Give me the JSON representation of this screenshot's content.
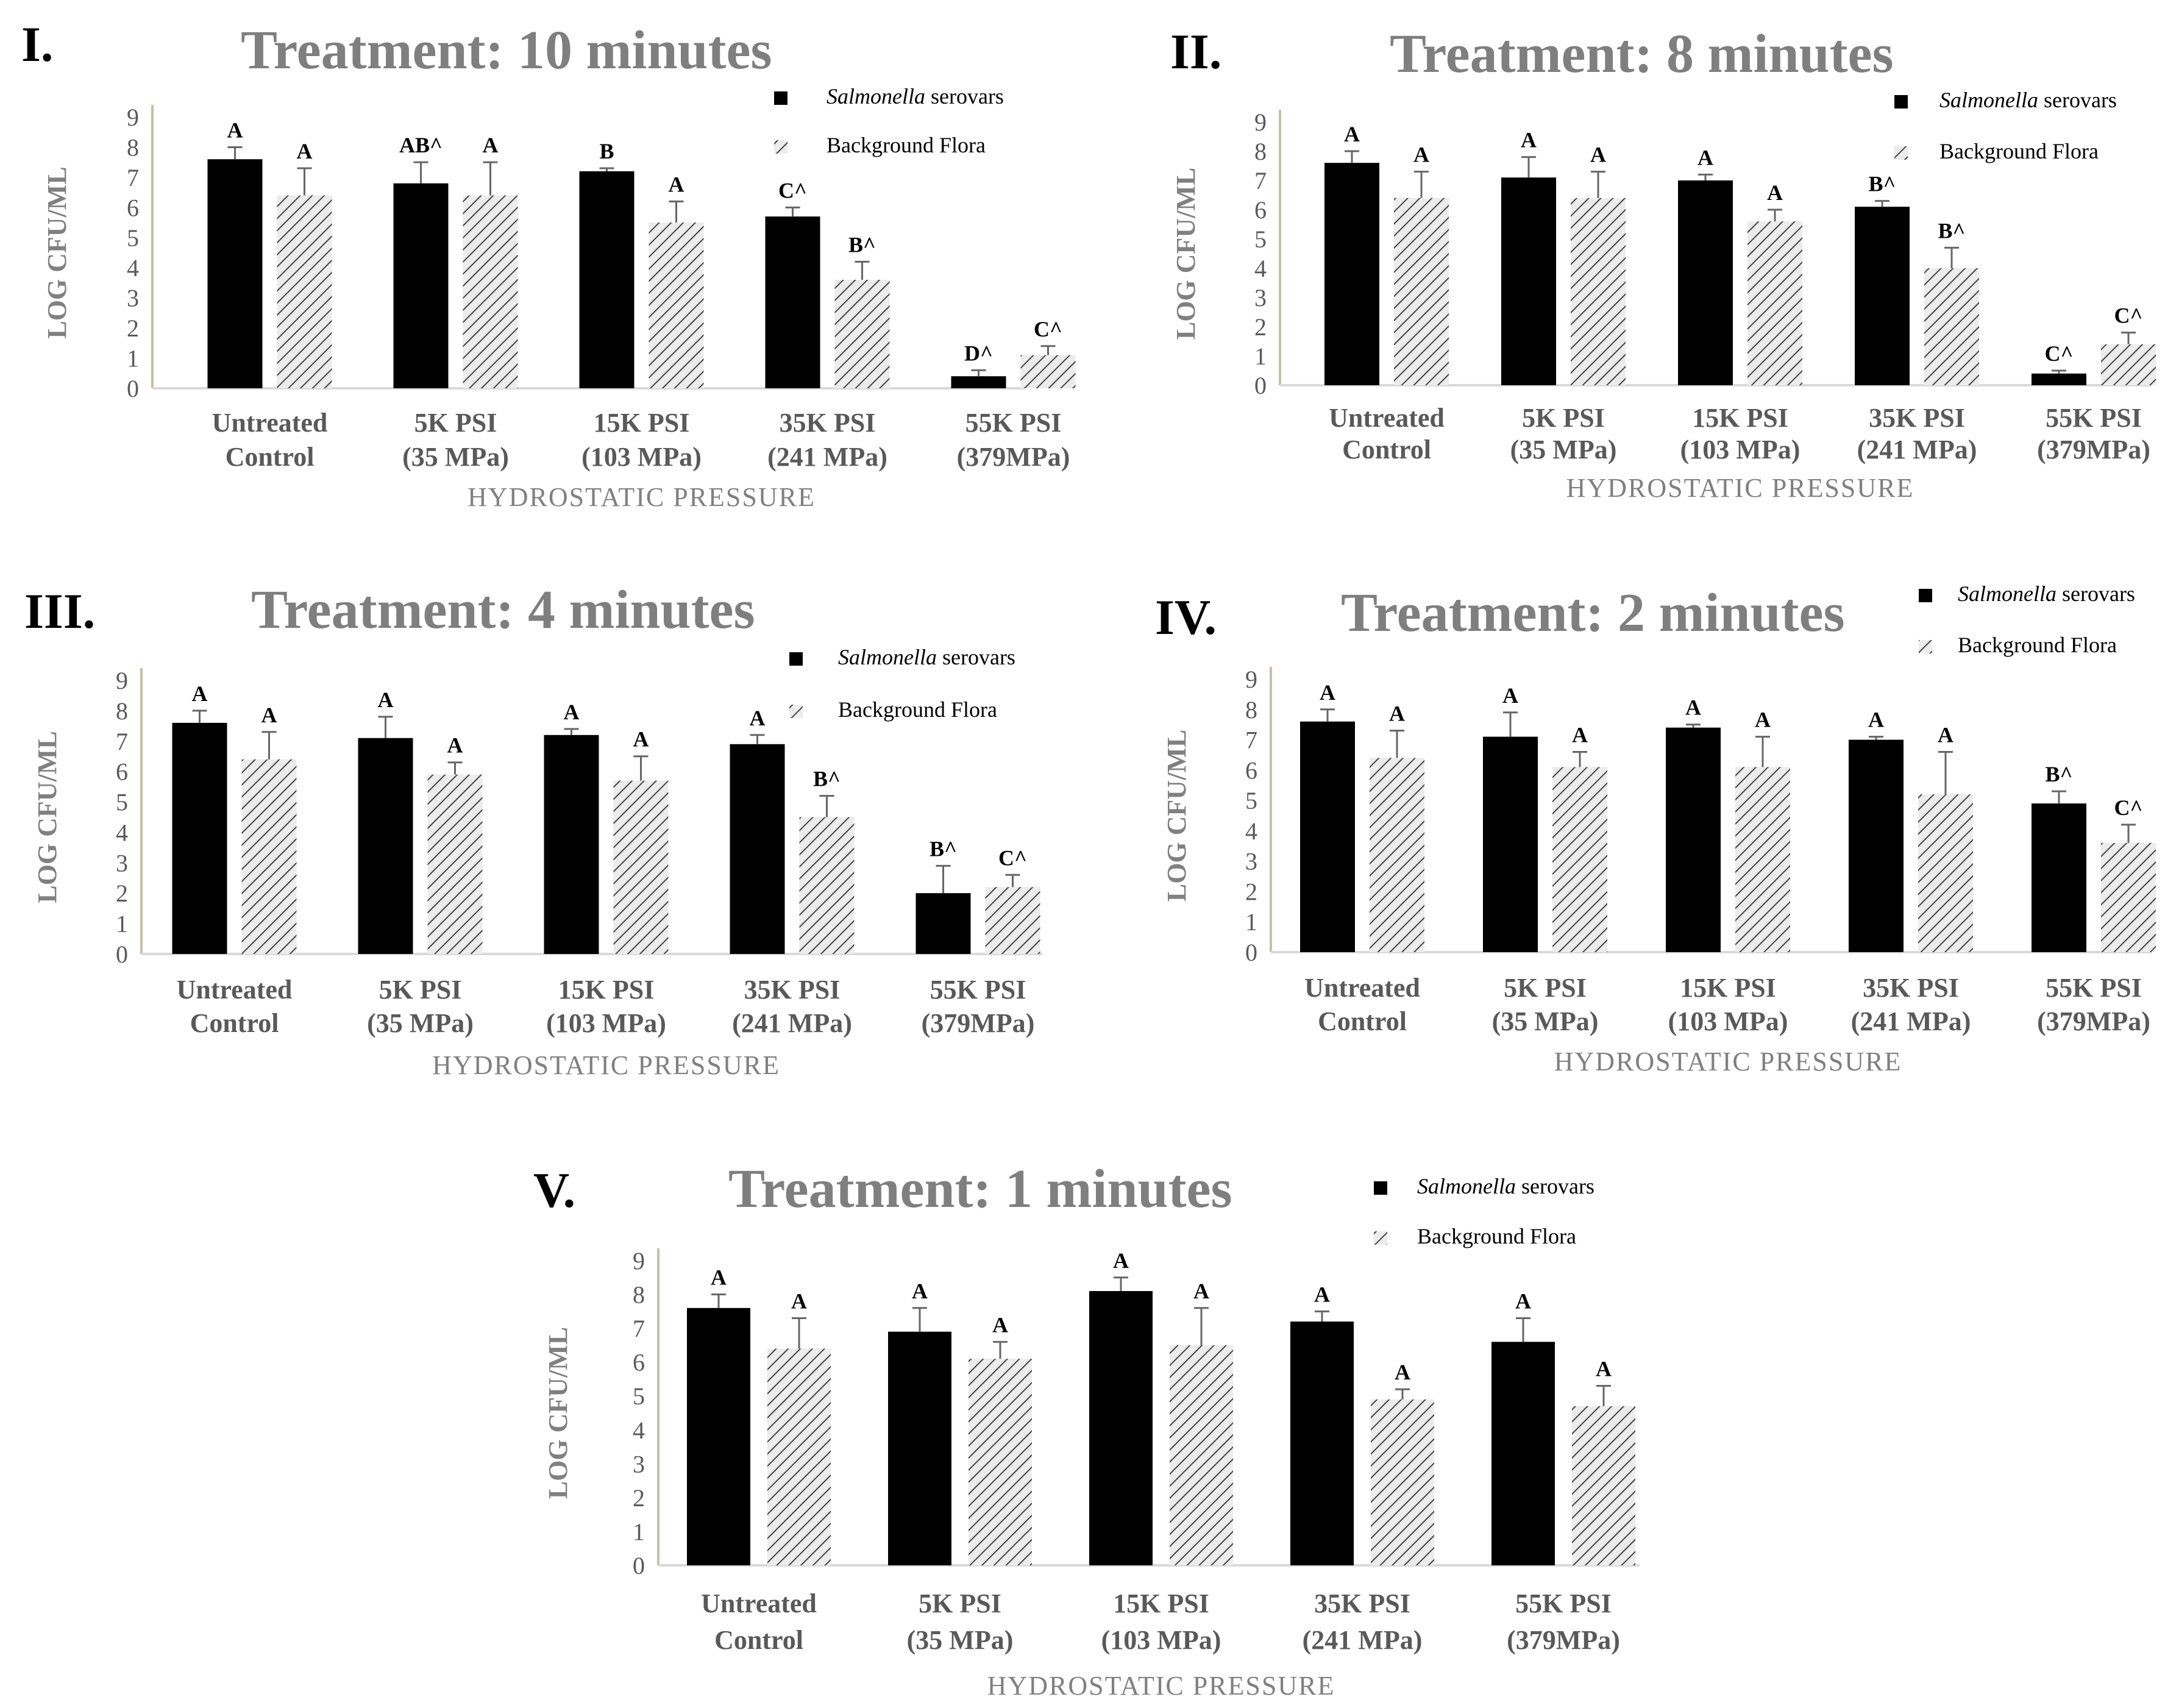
{
  "legend": {
    "salmonella_label": "Salmonella",
    "salmonella_suffix": "serovars",
    "flora_label": "Background Flora"
  },
  "colors": {
    "salmonella": "#000000",
    "flora_fill": "#ececec",
    "flora_hatch": "#444444",
    "title": "#7f7f7f",
    "axis_label": "#808080",
    "tick_label": "#595959",
    "axis_line": "#c8bfa3",
    "baseline": "#d9d9d9",
    "error_bar": "#666666"
  },
  "chart_data": [
    {
      "type": "bar",
      "panel_label": "I.",
      "title": "Treatment: 10 minutes",
      "xlabel": "HYDROSTATIC PRESSURE",
      "ylabel": "LOG CFU/ML",
      "ylim": [
        0,
        9
      ],
      "yticks": [
        "0",
        "1",
        "2",
        "3",
        "4",
        "5",
        "6",
        "7",
        "8",
        "9"
      ],
      "legend_placement": "top-right",
      "grid": false,
      "categories": [
        [
          "Untreated",
          "Control"
        ],
        [
          "5K PSI",
          "(35 MPa)"
        ],
        [
          "15K PSI",
          "(103 MPa)"
        ],
        [
          "35K PSI",
          "(241 MPa)"
        ],
        [
          "55K PSI",
          "(379MPa)"
        ]
      ],
      "series": [
        {
          "name": "Salmonella serovars",
          "values": [
            7.6,
            6.8,
            7.2,
            5.7,
            0.4
          ],
          "errors": [
            0.4,
            0.7,
            0.1,
            0.3,
            0.2
          ],
          "letters": [
            "A",
            "AB^",
            "B",
            "C^",
            "D^"
          ]
        },
        {
          "name": "Background Flora",
          "values": [
            6.4,
            6.4,
            5.5,
            3.6,
            1.1
          ],
          "errors": [
            0.9,
            1.1,
            0.7,
            0.6,
            0.3
          ],
          "letters": [
            "A",
            "A",
            "A",
            "B^",
            "C^"
          ]
        }
      ]
    },
    {
      "type": "bar",
      "panel_label": "II.",
      "title": "Treatment: 8 minutes",
      "xlabel": "HYDROSTATIC PRESSURE",
      "ylabel": "LOG CFU/ML",
      "ylim": [
        0,
        9
      ],
      "yticks": [
        "0",
        "1",
        "2",
        "3",
        "4",
        "5",
        "6",
        "7",
        "8",
        "9"
      ],
      "legend_placement": "top-right",
      "grid": false,
      "categories": [
        [
          "Untreated",
          "Control"
        ],
        [
          "5K PSI",
          "(35 MPa)"
        ],
        [
          "15K PSI",
          "(103 MPa)"
        ],
        [
          "35K PSI",
          "(241 MPa)"
        ],
        [
          "55K PSI",
          "(379MPa)"
        ]
      ],
      "series": [
        {
          "name": "Salmonella serovars",
          "values": [
            7.6,
            7.1,
            7.0,
            6.1,
            0.4
          ],
          "errors": [
            0.4,
            0.7,
            0.2,
            0.2,
            0.1
          ],
          "letters": [
            "A",
            "A",
            "A",
            "B^",
            "C^"
          ]
        },
        {
          "name": "Background Flora",
          "values": [
            6.4,
            6.4,
            5.6,
            4.0,
            1.4
          ],
          "errors": [
            0.9,
            0.9,
            0.4,
            0.7,
            0.4
          ],
          "letters": [
            "A",
            "A",
            "A",
            "B^",
            "C^"
          ]
        }
      ]
    },
    {
      "type": "bar",
      "panel_label": "III.",
      "title": "Treatment: 4 minutes",
      "xlabel": "HYDROSTATIC PRESSURE",
      "ylabel": "LOG CFU/ML",
      "ylim": [
        0,
        9
      ],
      "yticks": [
        "0",
        "1",
        "2",
        "3",
        "4",
        "5",
        "6",
        "7",
        "8",
        "9"
      ],
      "legend_placement": "top-right",
      "grid": false,
      "categories": [
        [
          "Untreated",
          "Control"
        ],
        [
          "5K PSI",
          "(35 MPa)"
        ],
        [
          "15K PSI",
          "(103 MPa)"
        ],
        [
          "35K PSI",
          "(241 MPa)"
        ],
        [
          "55K PSI",
          "(379MPa)"
        ]
      ],
      "series": [
        {
          "name": "Salmonella serovars",
          "values": [
            7.6,
            7.1,
            7.2,
            6.9,
            2.0
          ],
          "errors": [
            0.4,
            0.7,
            0.2,
            0.3,
            0.9
          ],
          "letters": [
            "A",
            "A",
            "A",
            "A",
            "B^"
          ]
        },
        {
          "name": "Background Flora",
          "values": [
            6.4,
            5.9,
            5.7,
            4.5,
            2.2
          ],
          "errors": [
            0.9,
            0.4,
            0.8,
            0.7,
            0.4
          ],
          "letters": [
            "A",
            "A",
            "A",
            "B^",
            "C^"
          ]
        }
      ]
    },
    {
      "type": "bar",
      "panel_label": "IV.",
      "title": "Treatment: 2 minutes",
      "xlabel": "HYDROSTATIC PRESSURE",
      "ylabel": "LOG CFU/ML",
      "ylim": [
        0,
        9
      ],
      "yticks": [
        "0",
        "1",
        "2",
        "3",
        "4",
        "5",
        "6",
        "7",
        "8",
        "9"
      ],
      "legend_placement": "top-right",
      "grid": false,
      "categories": [
        [
          "Untreated",
          "Control"
        ],
        [
          "5K PSI",
          "(35 MPa)"
        ],
        [
          "15K PSI",
          "(103 MPa)"
        ],
        [
          "35K PSI",
          "(241 MPa)"
        ],
        [
          "55K PSI",
          "(379MPa)"
        ]
      ],
      "series": [
        {
          "name": "Salmonella serovars",
          "values": [
            7.6,
            7.1,
            7.4,
            7.0,
            4.9
          ],
          "errors": [
            0.4,
            0.8,
            0.1,
            0.1,
            0.4
          ],
          "letters": [
            "A",
            "A",
            "A",
            "A",
            "B^"
          ]
        },
        {
          "name": "Background Flora",
          "values": [
            6.4,
            6.1,
            6.1,
            5.2,
            3.6
          ],
          "errors": [
            0.9,
            0.5,
            1.0,
            1.4,
            0.6
          ],
          "letters": [
            "A",
            "A",
            "A",
            "A",
            "C^"
          ]
        }
      ]
    },
    {
      "type": "bar",
      "panel_label": "V.",
      "title": "Treatment: 1 minutes",
      "xlabel": "HYDROSTATIC PRESSURE",
      "ylabel": "LOG CFU/ML",
      "ylim": [
        0,
        9
      ],
      "yticks": [
        "0",
        "1",
        "2",
        "3",
        "4",
        "5",
        "6",
        "7",
        "8",
        "9"
      ],
      "legend_placement": "top-right",
      "grid": false,
      "categories": [
        [
          "Untreated",
          "Control"
        ],
        [
          "5K PSI",
          "(35 MPa)"
        ],
        [
          "15K PSI",
          "(103 MPa)"
        ],
        [
          "35K PSI",
          "(241 MPa)"
        ],
        [
          "55K PSI",
          "(379MPa)"
        ]
      ],
      "series": [
        {
          "name": "Salmonella serovars",
          "values": [
            7.6,
            6.9,
            8.1,
            7.2,
            6.6
          ],
          "errors": [
            0.4,
            0.7,
            0.4,
            0.3,
            0.7
          ],
          "letters": [
            "A",
            "A",
            "A",
            "A",
            "A"
          ]
        },
        {
          "name": "Background Flora",
          "values": [
            6.4,
            6.1,
            6.5,
            4.9,
            4.7
          ],
          "errors": [
            0.9,
            0.5,
            1.1,
            0.3,
            0.6
          ],
          "letters": [
            "A",
            "A",
            "A",
            "A",
            "A"
          ]
        }
      ]
    }
  ]
}
